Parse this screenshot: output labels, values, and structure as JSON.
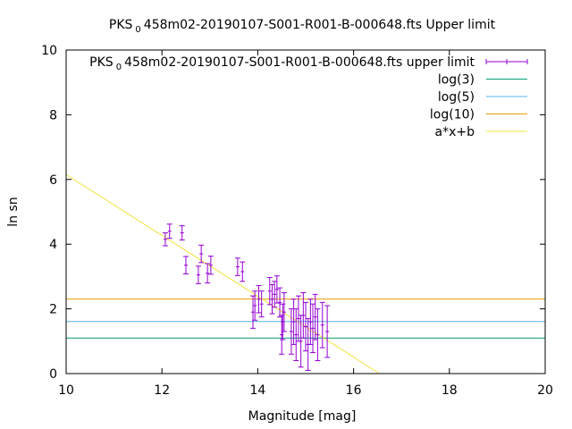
{
  "chart_data": {
    "type": "scatter",
    "title_main": "PKS",
    "title_sub": "0",
    "title_rest": "458m02-20190107-S001-R001-B-000648.fts Upper limit",
    "xlabel": "Magnitude [mag]",
    "ylabel": "ln sn",
    "xlim": [
      10,
      20
    ],
    "ylim": [
      0,
      10
    ],
    "xticks": [
      "10",
      "12",
      "14",
      "16",
      "18",
      "20"
    ],
    "yticks": [
      "0",
      "2",
      "4",
      "6",
      "8",
      "10"
    ],
    "legend_position": "top-right",
    "legend": [
      {
        "main": "PKS",
        "sub": "0",
        "rest": "458m02-20190107-S001-R001-B-000648.fts upper limit",
        "color": "#9400d3",
        "style": "errorbar"
      },
      {
        "main": "log(3)",
        "sub": "",
        "rest": "",
        "color": "#009e73",
        "style": "line"
      },
      {
        "main": "log(5)",
        "sub": "",
        "rest": "",
        "color": "#56b4e9",
        "style": "line"
      },
      {
        "main": "log(10)",
        "sub": "",
        "rest": "",
        "color": "#e69f00",
        "style": "line"
      },
      {
        "main": "a*x+b",
        "sub": "",
        "rest": "",
        "color": "#f0e442",
        "style": "line"
      }
    ],
    "hlines": [
      {
        "name": "log(3)",
        "y": 1.0986,
        "color": "#009e73"
      },
      {
        "name": "log(5)",
        "y": 1.6094,
        "color": "#56b4e9"
      },
      {
        "name": "log(10)",
        "y": 2.3026,
        "color": "#e69f00"
      }
    ],
    "fit_line": {
      "name": "a*x+b",
      "a": -0.94,
      "b": 15.55,
      "color": "#f0e442"
    },
    "series": [
      {
        "name": "PKS 0458m02-20190107-S001-R001-B-000648.fts upper limit",
        "color": "#9400d3",
        "points": [
          {
            "x": 12.07,
            "y": 4.15,
            "err": 0.2
          },
          {
            "x": 12.16,
            "y": 4.4,
            "err": 0.22
          },
          {
            "x": 12.42,
            "y": 4.35,
            "err": 0.22
          },
          {
            "x": 12.5,
            "y": 3.35,
            "err": 0.27
          },
          {
            "x": 12.76,
            "y": 3.05,
            "err": 0.27
          },
          {
            "x": 12.82,
            "y": 3.7,
            "err": 0.27
          },
          {
            "x": 12.95,
            "y": 3.1,
            "err": 0.3
          },
          {
            "x": 13.02,
            "y": 3.35,
            "err": 0.28
          },
          {
            "x": 13.58,
            "y": 3.3,
            "err": 0.27
          },
          {
            "x": 13.68,
            "y": 3.15,
            "err": 0.3
          },
          {
            "x": 13.9,
            "y": 1.9,
            "err": 0.5
          },
          {
            "x": 13.94,
            "y": 2.1,
            "err": 0.45
          },
          {
            "x": 14.02,
            "y": 2.3,
            "err": 0.42
          },
          {
            "x": 14.08,
            "y": 2.15,
            "err": 0.4
          },
          {
            "x": 14.25,
            "y": 2.55,
            "err": 0.42
          },
          {
            "x": 14.3,
            "y": 2.3,
            "err": 0.45
          },
          {
            "x": 14.35,
            "y": 2.45,
            "err": 0.4
          },
          {
            "x": 14.4,
            "y": 2.6,
            "err": 0.42
          },
          {
            "x": 14.46,
            "y": 2.2,
            "err": 0.45
          },
          {
            "x": 14.5,
            "y": 1.2,
            "err": 0.6
          },
          {
            "x": 14.52,
            "y": 1.6,
            "err": 0.55
          },
          {
            "x": 14.55,
            "y": 1.9,
            "err": 0.6
          },
          {
            "x": 14.7,
            "y": 1.3,
            "err": 0.7
          },
          {
            "x": 14.75,
            "y": 1.6,
            "err": 0.7
          },
          {
            "x": 14.8,
            "y": 1.2,
            "err": 0.8
          },
          {
            "x": 14.85,
            "y": 1.7,
            "err": 0.7
          },
          {
            "x": 14.9,
            "y": 1.0,
            "err": 0.8
          },
          {
            "x": 14.95,
            "y": 1.8,
            "err": 0.7
          },
          {
            "x": 15.0,
            "y": 1.45,
            "err": 0.75
          },
          {
            "x": 15.05,
            "y": 0.9,
            "err": 0.8
          },
          {
            "x": 15.1,
            "y": 1.6,
            "err": 0.7
          },
          {
            "x": 15.15,
            "y": 1.4,
            "err": 0.75
          },
          {
            "x": 15.2,
            "y": 1.75,
            "err": 0.7
          },
          {
            "x": 15.25,
            "y": 1.2,
            "err": 0.8
          },
          {
            "x": 15.35,
            "y": 1.5,
            "err": 0.7
          },
          {
            "x": 15.45,
            "y": 1.3,
            "err": 0.8
          }
        ]
      }
    ]
  }
}
